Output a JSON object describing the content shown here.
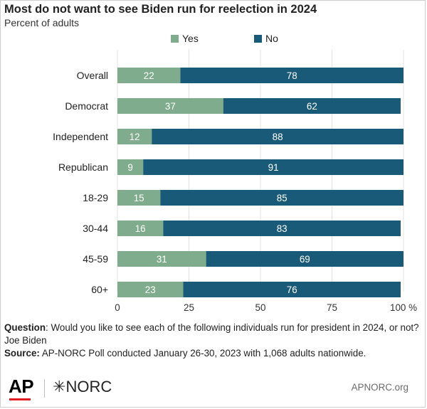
{
  "header": {
    "title": "Most do not want to see Biden run for reelection in 2024",
    "subtitle": "Percent of adults"
  },
  "chart_data": {
    "type": "bar",
    "orientation": "horizontal",
    "stacked": true,
    "categories": [
      "Overall",
      "Democrat",
      "Independent",
      "Republican",
      "18-29",
      "30-44",
      "45-59",
      "60+"
    ],
    "series": [
      {
        "name": "Yes",
        "color": "#7eac8c",
        "values": [
          22,
          37,
          12,
          9,
          15,
          16,
          31,
          23
        ]
      },
      {
        "name": "No",
        "color": "#1a5a79",
        "values": [
          78,
          62,
          88,
          91,
          85,
          83,
          69,
          76
        ]
      }
    ],
    "xlim": [
      0,
      100
    ],
    "xticks": [
      "0",
      "25",
      "50",
      "75",
      "100 %"
    ],
    "legend_position": "top",
    "grid": true
  },
  "notes": {
    "question_label": "Question",
    "question_text": ": Would you like to see each of the following individuals run for president in 2024, or not? Joe Biden",
    "source_label": "Source:",
    "source_text": " AP-NORC Poll conducted January 26-30, 2023 with 1,068 adults nationwide."
  },
  "footer": {
    "ap_logo": "AP",
    "norc_logo": "NORC",
    "site": "APNORC.org"
  }
}
